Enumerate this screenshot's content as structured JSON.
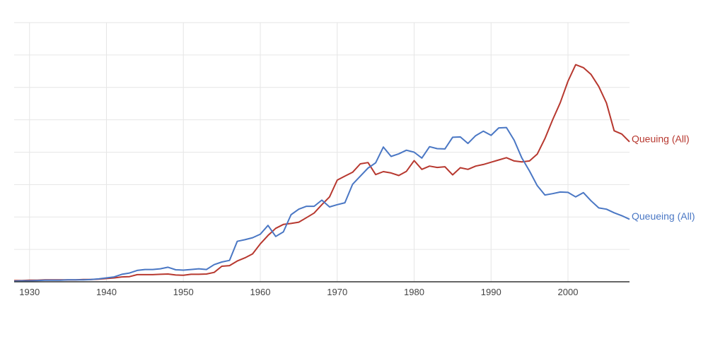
{
  "chart_data": {
    "type": "line",
    "title": "",
    "xlabel": "",
    "ylabel": "",
    "xlim": [
      1928,
      2008
    ],
    "ylim": [
      0,
      8
    ],
    "grid": true,
    "x_ticks": [
      1930,
      1940,
      1950,
      1960,
      1970,
      1980,
      1990,
      2000
    ],
    "y_gridlines": [
      1,
      2,
      3,
      4,
      5,
      6,
      7,
      8
    ],
    "x": [
      1928,
      1929,
      1930,
      1931,
      1932,
      1933,
      1934,
      1935,
      1936,
      1937,
      1938,
      1939,
      1940,
      1941,
      1942,
      1943,
      1944,
      1945,
      1946,
      1947,
      1948,
      1949,
      1950,
      1951,
      1952,
      1953,
      1954,
      1955,
      1956,
      1957,
      1958,
      1959,
      1960,
      1961,
      1962,
      1963,
      1964,
      1965,
      1966,
      1967,
      1968,
      1969,
      1970,
      1971,
      1972,
      1973,
      1974,
      1975,
      1976,
      1977,
      1978,
      1979,
      1980,
      1981,
      1982,
      1983,
      1984,
      1985,
      1986,
      1987,
      1988,
      1989,
      1990,
      1991,
      1992,
      1993,
      1994,
      1995,
      1996,
      1997,
      1998,
      1999,
      2000,
      2001,
      2002,
      2003,
      2004,
      2005,
      2006,
      2007,
      2008
    ],
    "series": [
      {
        "name": "Queuing (All)",
        "color": "#b7382f",
        "values": [
          0.04,
          0.04,
          0.05,
          0.05,
          0.06,
          0.06,
          0.06,
          0.06,
          0.06,
          0.07,
          0.07,
          0.08,
          0.1,
          0.12,
          0.15,
          0.16,
          0.22,
          0.22,
          0.22,
          0.23,
          0.24,
          0.21,
          0.2,
          0.23,
          0.23,
          0.24,
          0.29,
          0.48,
          0.5,
          0.64,
          0.74,
          0.86,
          1.17,
          1.43,
          1.65,
          1.77,
          1.8,
          1.84,
          1.98,
          2.12,
          2.38,
          2.62,
          3.14,
          3.26,
          3.38,
          3.64,
          3.68,
          3.31,
          3.4,
          3.36,
          3.28,
          3.41,
          3.74,
          3.47,
          3.57,
          3.53,
          3.55,
          3.3,
          3.52,
          3.47,
          3.57,
          3.62,
          3.69,
          3.76,
          3.83,
          3.73,
          3.7,
          3.73,
          3.94,
          4.42,
          5.0,
          5.53,
          6.19,
          6.7,
          6.61,
          6.4,
          6.03,
          5.52,
          4.66,
          4.56,
          4.32
        ]
      },
      {
        "name": "Queueing (All)",
        "color": "#4a77c4",
        "values": [
          0.02,
          0.03,
          0.03,
          0.04,
          0.05,
          0.05,
          0.05,
          0.06,
          0.06,
          0.06,
          0.07,
          0.09,
          0.12,
          0.15,
          0.23,
          0.27,
          0.35,
          0.38,
          0.38,
          0.4,
          0.45,
          0.37,
          0.36,
          0.38,
          0.4,
          0.38,
          0.53,
          0.61,
          0.66,
          1.25,
          1.3,
          1.36,
          1.47,
          1.74,
          1.4,
          1.54,
          2.07,
          2.24,
          2.33,
          2.33,
          2.52,
          2.31,
          2.38,
          2.44,
          3.01,
          3.26,
          3.51,
          3.67,
          4.16,
          3.87,
          3.95,
          4.06,
          4.0,
          3.82,
          4.17,
          4.11,
          4.1,
          4.46,
          4.47,
          4.27,
          4.51,
          4.65,
          4.52,
          4.75,
          4.76,
          4.37,
          3.82,
          3.42,
          2.97,
          2.68,
          2.72,
          2.77,
          2.76,
          2.62,
          2.75,
          2.5,
          2.28,
          2.24,
          2.13,
          2.04,
          1.93
        ]
      }
    ]
  }
}
